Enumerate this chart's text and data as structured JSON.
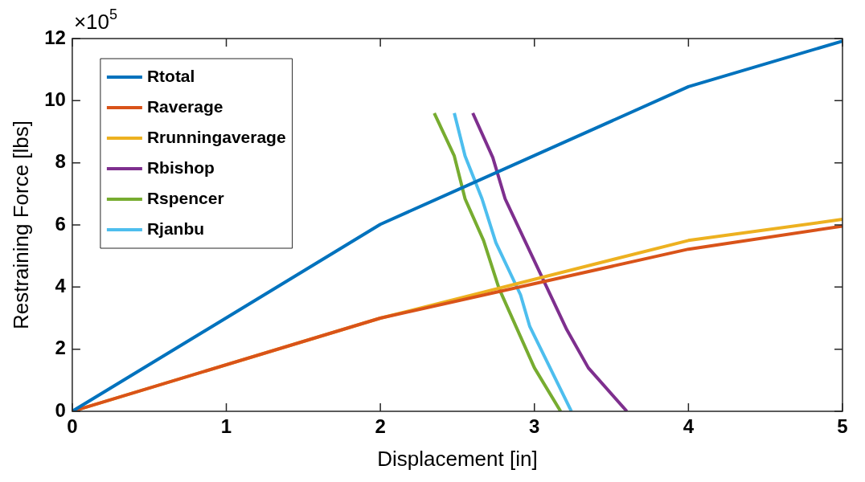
{
  "chart_data": {
    "type": "line",
    "xlabel": "Displacement [in]",
    "ylabel": "Restraining Force [lbs]",
    "annotations": [
      "×10$^{5}$"
    ],
    "xlim": [
      0,
      5
    ],
    "xticks": [
      0,
      1,
      2,
      3,
      4,
      5
    ],
    "ylim": [
      0,
      12
    ],
    "yticks": [
      0,
      2,
      4,
      6,
      8,
      10,
      12
    ],
    "grid": false,
    "legend": "top left",
    "marker": "none",
    "line_style": "solid",
    "series": [
      {
        "name": "Rtotal",
        "color": "#0072bd",
        "x": [
          0,
          2,
          4,
          5
        ],
        "values": [
          0,
          6.02,
          10.45,
          11.92
        ]
      },
      {
        "name": "Raverage",
        "color": "#d95319",
        "x": [
          0,
          2,
          4,
          5
        ],
        "values": [
          0,
          3.0,
          5.22,
          5.96
        ]
      },
      {
        "name": "Rrunningaverage",
        "color": "#edb120",
        "x": [
          0,
          2,
          4,
          5
        ],
        "values": [
          0,
          3.0,
          5.5,
          6.18
        ]
      },
      {
        "name": "Rbishop",
        "color": "#7e2f8e",
        "x": [
          2.6,
          2.73,
          2.81,
          3.21,
          3.35,
          3.6
        ],
        "values": [
          9.6,
          8.17,
          6.84,
          2.63,
          1.4,
          0
        ]
      },
      {
        "name": "Rspencer",
        "color": "#77ac30",
        "x": [
          2.35,
          2.48,
          2.55,
          2.67,
          2.77,
          3.0,
          3.17
        ],
        "values": [
          9.6,
          8.22,
          6.84,
          5.5,
          3.96,
          1.4,
          0
        ]
      },
      {
        "name": "Rjanbu",
        "color": "#4dbeee",
        "x": [
          2.48,
          2.55,
          2.66,
          2.75,
          2.91,
          2.97,
          3.24
        ],
        "values": [
          9.6,
          8.22,
          6.84,
          5.43,
          3.75,
          2.73,
          0
        ]
      }
    ]
  }
}
